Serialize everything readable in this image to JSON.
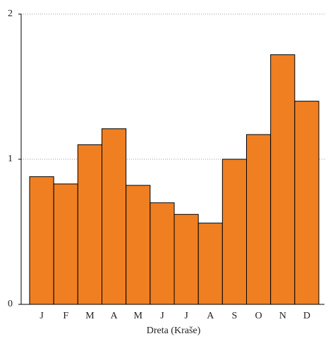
{
  "chart_data": {
    "type": "bar",
    "x_label": "Dreta (Kraše)",
    "categories": [
      "J",
      "F",
      "M",
      "A",
      "M",
      "J",
      "J",
      "A",
      "S",
      "O",
      "N",
      "D"
    ],
    "values": [
      0.88,
      0.83,
      1.1,
      1.21,
      0.82,
      0.7,
      0.62,
      0.56,
      1.0,
      1.17,
      1.72,
      1.4
    ],
    "color": "#f07f22",
    "ylim": [
      0,
      2
    ],
    "yticks": [
      0,
      1,
      2
    ],
    "grid": true
  }
}
